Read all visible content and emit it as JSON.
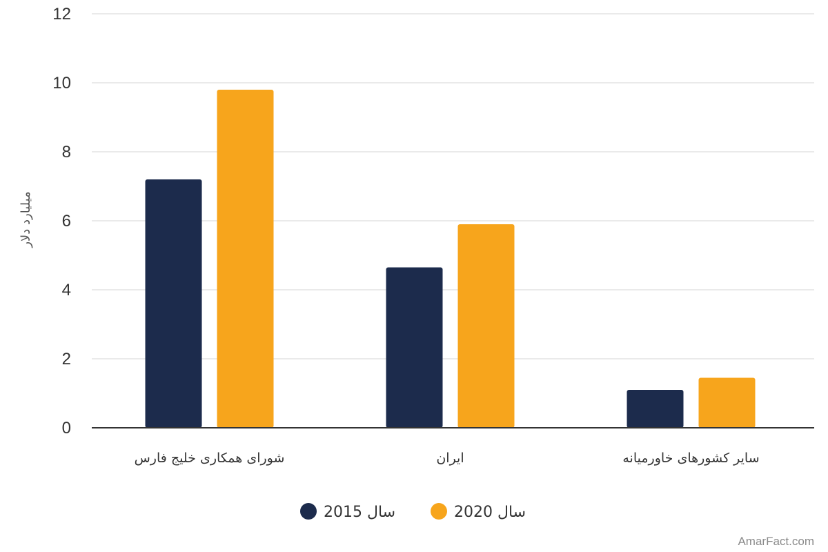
{
  "chart_data": {
    "type": "bar",
    "categories": [
      "شورای همکاری خلیج فارس",
      "ایران",
      "سایر کشورهای خاورمیانه"
    ],
    "series": [
      {
        "name": "سال 2015",
        "color": "#1c2b4c",
        "values": [
          7.2,
          4.65,
          1.1
        ]
      },
      {
        "name": "سال 2020",
        "color": "#f7a51c",
        "values": [
          9.8,
          5.9,
          1.45
        ]
      }
    ],
    "ylabel": "میلیارد دلار",
    "ylim": [
      0,
      12
    ],
    "yticks": [
      "0",
      "2",
      "4",
      "6",
      "8",
      "10",
      "12"
    ],
    "grid": true,
    "legend_position": "bottom-center"
  },
  "watermark": "AmarFact.com"
}
